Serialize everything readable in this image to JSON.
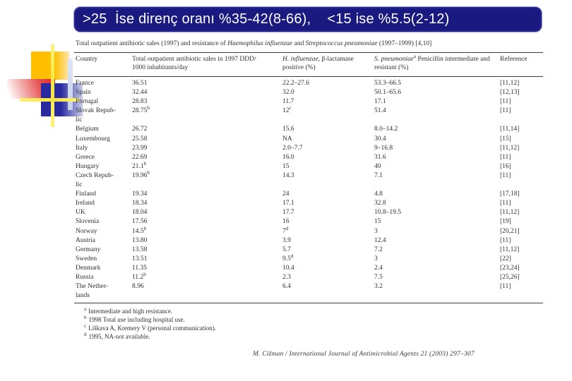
{
  "slide": {
    "title": ">25  İse direnç oranı %35-42(8-66),    <15 ise %5.5(2-12)",
    "accent_colors": {
      "banner_bg": "#191980",
      "banner_text": "#ffffff",
      "square_orange": "#ffbf00",
      "square_red": "#dd2020",
      "square_blue": "#2a2aa0",
      "cross_yellow": "#f3e43c"
    }
  },
  "table": {
    "caption": {
      "part1": "Total outpatient antibiotic sales (1997) and resistance of ",
      "part2": "Haemophilus influenzae",
      "part3": " and ",
      "part4": "Streptococcus pneumoniae",
      "part5": " (1997–1999) [4,10]"
    },
    "columns": {
      "country": "Country",
      "sales_line1": "Total outpatient antibiotic sales in 1997 DDD/",
      "sales_line2": "1000 inhabitants/day",
      "hinf_italic": "H. influenzae",
      "hinf_rest": ", β-lactamase positive (%)",
      "spneu_italic": "S. pneumoniae",
      "spneu_sup": "a",
      "spneu_rest": " Penicillin intermediate and resistant (%)",
      "reference": "Reference"
    },
    "rows": [
      {
        "country": "France",
        "sales": "36.51",
        "hinf": "22.2–27.6",
        "spneu": "53.3–66.5",
        "ref": "[11,12]"
      },
      {
        "country": "Spain",
        "sales": "32.44",
        "hinf": "32.0",
        "spneu": "50.1–65.6",
        "ref": "[12,13]"
      },
      {
        "country": "Portugal",
        "sales": "28.83",
        "hinf": "11.7",
        "spneu": "17.1",
        "ref": "[11]"
      },
      {
        "country": "Slovak Repub-\nlic",
        "sales": "28.75^b",
        "hinf": "12^c",
        "spneu": "51.4",
        "ref": "[11]"
      },
      {
        "country": "Belgium",
        "sales": "26.72",
        "hinf": "15.6",
        "spneu": "8.0–14.2",
        "ref": "[11,14]"
      },
      {
        "country": "Luxembourg",
        "sales": "25.58",
        "hinf": "NA",
        "spneu": "30.4",
        "ref": "[15]"
      },
      {
        "country": "Italy",
        "sales": "23.99",
        "hinf": "2.0–7.7",
        "spneu": "9–16.8",
        "ref": "[11,12]"
      },
      {
        "country": "Greece",
        "sales": "22.69",
        "hinf": "16.0",
        "spneu": "31.6",
        "ref": "[11]"
      },
      {
        "country": "Hungary",
        "sales": "21.1^b",
        "hinf": "15",
        "spneu": "40",
        "ref": "[16]"
      },
      {
        "country": "Czech Repub-\nlic",
        "sales": "19.96^b",
        "hinf": "14.3",
        "spneu": "7.1",
        "ref": "[11]"
      },
      {
        "country": "Finland",
        "sales": "19.34",
        "hinf": "24",
        "spneu": "4.8",
        "ref": "[17,18]"
      },
      {
        "country": "Ireland",
        "sales": "18.34",
        "hinf": "17.1",
        "spneu": "32.8",
        "ref": "[11]"
      },
      {
        "country": "UK",
        "sales": "18.04",
        "hinf": "17.7",
        "spneu": "10.8–19.5",
        "ref": "[11,12]"
      },
      {
        "country": "Slovenia",
        "sales": "17.56",
        "hinf": "16",
        "spneu": "15",
        "ref": "[19]"
      },
      {
        "country": "Norway",
        "sales": "14.5^b",
        "hinf": "7^d",
        "spneu": "3",
        "ref": "[20,21]"
      },
      {
        "country": "Austria",
        "sales": "13.80",
        "hinf": "3.9",
        "spneu": "12.4",
        "ref": "[11]"
      },
      {
        "country": "Germany",
        "sales": "13.58",
        "hinf": "5.7",
        "spneu": "7.2",
        "ref": "[11,12]"
      },
      {
        "country": "Sweden",
        "sales": "13.51",
        "hinf": "9.5^d",
        "spneu": "3",
        "ref": "[22]"
      },
      {
        "country": "Denmark",
        "sales": "11.35",
        "hinf": "10.4",
        "spneu": "2.4",
        "ref": "[23,24]"
      },
      {
        "country": "Russia",
        "sales": "11.2^b",
        "hinf": "2.3",
        "spneu": "7.5",
        "ref": "[25,26]"
      },
      {
        "country": "The Nether-\nlands",
        "sales": "8.96",
        "hinf": "6.4",
        "spneu": "3.2",
        "ref": "[11]"
      }
    ],
    "footnotes": [
      {
        "mark": "a",
        "text": "Intermediate and high resistance."
      },
      {
        "mark": "b",
        "text": "1998 Total use including hospital use."
      },
      {
        "mark": "c",
        "text": "Liškava A, Kremery V (personal communication)."
      },
      {
        "mark": "d",
        "text": "1995, NA-not available."
      }
    ],
    "source": "M. Cižman / International Journal of Antimicrobial Agents 21 (2003) 297–307"
  }
}
